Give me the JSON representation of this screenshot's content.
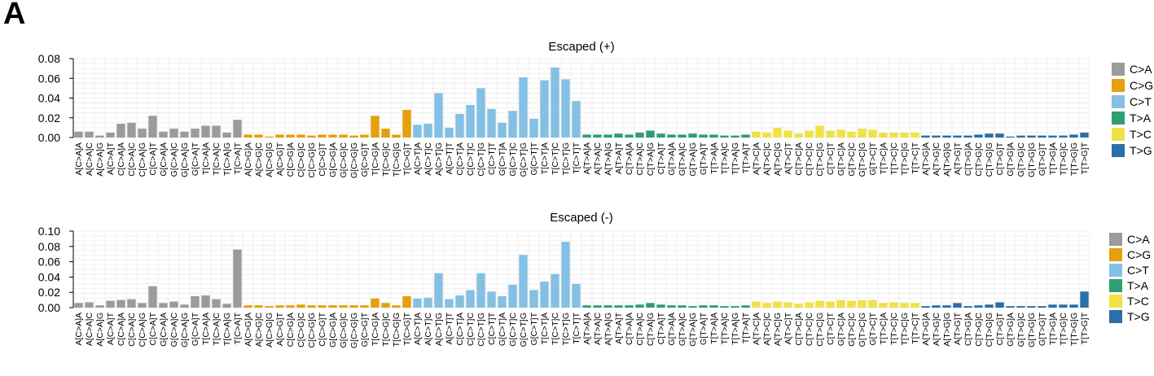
{
  "panel_label": "A",
  "colors": {
    "C>A": "#9b9b9b",
    "C>G": "#e4a00d",
    "C>T": "#84c0e3",
    "T>A": "#2f9e73",
    "T>C": "#f0e244",
    "T>G": "#2b6fa8"
  },
  "chart_data": [
    {
      "type": "bar",
      "title": "Escaped (+)",
      "ylim": [
        0,
        0.08
      ],
      "yticks": [
        "0.00",
        "0.02",
        "0.04",
        "0.06",
        "0.08"
      ],
      "grid": true,
      "legend_position": "right",
      "legend": [
        "C>A",
        "C>G",
        "C>T",
        "T>A",
        "T>C",
        "T>G"
      ],
      "categories": [
        "A[C>A]A",
        "A[C>A]C",
        "A[C>A]G",
        "A[C>A]T",
        "C[C>A]A",
        "C[C>A]C",
        "C[C>A]G",
        "C[C>A]T",
        "G[C>A]A",
        "G[C>A]C",
        "G[C>A]G",
        "G[C>A]T",
        "T[C>A]A",
        "T[C>A]C",
        "T[C>A]G",
        "T[C>A]T",
        "A[C>G]A",
        "A[C>G]C",
        "A[C>G]G",
        "A[C>G]T",
        "C[C>G]A",
        "C[C>G]C",
        "C[C>G]G",
        "C[C>G]T",
        "G[C>G]A",
        "G[C>G]C",
        "G[C>G]G",
        "G[C>G]T",
        "T[C>G]A",
        "T[C>G]C",
        "T[C>G]G",
        "T[C>G]T",
        "A[C>T]A",
        "A[C>T]C",
        "A[C>T]G",
        "A[C>T]T",
        "C[C>T]A",
        "C[C>T]C",
        "C[C>T]G",
        "C[C>T]T",
        "G[C>T]A",
        "G[C>T]C",
        "G[C>T]G",
        "G[C>T]T",
        "T[C>T]A",
        "T[C>T]C",
        "T[C>T]G",
        "T[C>T]T",
        "A[T>A]A",
        "A[T>A]C",
        "A[T>A]G",
        "A[T>A]T",
        "C[T>A]A",
        "C[T>A]C",
        "C[T>A]G",
        "C[T>A]T",
        "G[T>A]A",
        "G[T>A]C",
        "G[T>A]G",
        "G[T>A]T",
        "T[T>A]A",
        "T[T>A]C",
        "T[T>A]G",
        "T[T>A]T",
        "A[T>C]A",
        "A[T>C]C",
        "A[T>C]G",
        "A[T>C]T",
        "C[T>C]A",
        "C[T>C]C",
        "C[T>C]G",
        "C[T>C]T",
        "G[T>C]A",
        "G[T>C]C",
        "G[T>C]G",
        "G[T>C]T",
        "T[T>C]A",
        "T[T>C]C",
        "T[T>C]G",
        "T[T>C]T",
        "A[T>G]A",
        "A[T>G]C",
        "A[T>G]G",
        "A[T>G]T",
        "C[T>G]A",
        "C[T>G]C",
        "C[T>G]G",
        "C[T>G]T",
        "G[T>G]A",
        "G[T>G]C",
        "G[T>G]G",
        "G[T>G]T",
        "T[T>G]A",
        "T[T>G]C",
        "T[T>G]G",
        "T[T>G]T"
      ],
      "values": [
        0.006,
        0.006,
        0.002,
        0.005,
        0.014,
        0.015,
        0.009,
        0.022,
        0.006,
        0.009,
        0.006,
        0.009,
        0.012,
        0.012,
        0.005,
        0.018,
        0.003,
        0.003,
        0.001,
        0.003,
        0.003,
        0.003,
        0.002,
        0.003,
        0.003,
        0.003,
        0.002,
        0.003,
        0.022,
        0.009,
        0.003,
        0.028,
        0.013,
        0.014,
        0.045,
        0.01,
        0.024,
        0.033,
        0.05,
        0.029,
        0.015,
        0.027,
        0.061,
        0.019,
        0.058,
        0.071,
        0.059,
        0.037,
        0.003,
        0.003,
        0.003,
        0.004,
        0.003,
        0.005,
        0.007,
        0.004,
        0.003,
        0.003,
        0.004,
        0.003,
        0.003,
        0.002,
        0.002,
        0.003,
        0.006,
        0.005,
        0.01,
        0.007,
        0.004,
        0.007,
        0.012,
        0.007,
        0.008,
        0.006,
        0.009,
        0.008,
        0.005,
        0.005,
        0.005,
        0.005,
        0.002,
        0.002,
        0.002,
        0.002,
        0.002,
        0.003,
        0.004,
        0.004,
        0.001,
        0.002,
        0.002,
        0.002,
        0.002,
        0.002,
        0.003,
        0.005
      ]
    },
    {
      "type": "bar",
      "title": "Escaped (-)",
      "ylim": [
        0,
        0.1
      ],
      "yticks": [
        "0.00",
        "0.02",
        "0.04",
        "0.06",
        "0.08",
        "0.10"
      ],
      "grid": true,
      "legend_position": "right",
      "legend": [
        "C>A",
        "C>G",
        "C>T",
        "T>A",
        "T>C",
        "T>G"
      ],
      "categories": [
        "A[C>A]A",
        "A[C>A]C",
        "A[C>A]G",
        "A[C>A]T",
        "C[C>A]A",
        "C[C>A]C",
        "C[C>A]G",
        "C[C>A]T",
        "G[C>A]A",
        "G[C>A]C",
        "G[C>A]G",
        "G[C>A]T",
        "T[C>A]A",
        "T[C>A]C",
        "T[C>A]G",
        "T[C>A]T",
        "A[C>G]A",
        "A[C>G]C",
        "A[C>G]G",
        "A[C>G]T",
        "C[C>G]A",
        "C[C>G]C",
        "C[C>G]G",
        "C[C>G]T",
        "G[C>G]A",
        "G[C>G]C",
        "G[C>G]G",
        "G[C>G]T",
        "T[C>G]A",
        "T[C>G]C",
        "T[C>G]G",
        "T[C>G]T",
        "A[C>T]A",
        "A[C>T]C",
        "A[C>T]G",
        "A[C>T]T",
        "C[C>T]A",
        "C[C>T]C",
        "C[C>T]G",
        "C[C>T]T",
        "G[C>T]A",
        "G[C>T]C",
        "G[C>T]G",
        "G[C>T]T",
        "T[C>T]A",
        "T[C>T]C",
        "T[C>T]G",
        "T[C>T]T",
        "A[T>A]A",
        "A[T>A]C",
        "A[T>A]G",
        "A[T>A]T",
        "C[T>A]A",
        "C[T>A]C",
        "C[T>A]G",
        "C[T>A]T",
        "G[T>A]A",
        "G[T>A]C",
        "G[T>A]G",
        "G[T>A]T",
        "T[T>A]A",
        "T[T>A]C",
        "T[T>A]G",
        "T[T>A]T",
        "A[T>C]A",
        "A[T>C]C",
        "A[T>C]G",
        "A[T>C]T",
        "C[T>C]A",
        "C[T>C]C",
        "C[T>C]G",
        "C[T>C]T",
        "G[T>C]A",
        "G[T>C]C",
        "G[T>C]G",
        "G[T>C]T",
        "T[T>C]A",
        "T[T>C]C",
        "T[T>C]G",
        "T[T>C]T",
        "A[T>G]A",
        "A[T>G]C",
        "A[T>G]G",
        "A[T>G]T",
        "C[T>G]A",
        "C[T>G]C",
        "C[T>G]G",
        "C[T>G]T",
        "G[T>G]A",
        "G[T>G]C",
        "G[T>G]G",
        "G[T>G]T",
        "T[T>G]A",
        "T[T>G]C",
        "T[T>G]G",
        "T[T>G]T"
      ],
      "values": [
        0.006,
        0.007,
        0.003,
        0.009,
        0.01,
        0.011,
        0.006,
        0.028,
        0.006,
        0.008,
        0.004,
        0.015,
        0.016,
        0.011,
        0.005,
        0.076,
        0.003,
        0.003,
        0.002,
        0.003,
        0.003,
        0.004,
        0.003,
        0.003,
        0.003,
        0.003,
        0.003,
        0.003,
        0.012,
        0.006,
        0.003,
        0.015,
        0.012,
        0.013,
        0.045,
        0.011,
        0.016,
        0.023,
        0.045,
        0.021,
        0.015,
        0.03,
        0.069,
        0.023,
        0.034,
        0.044,
        0.086,
        0.031,
        0.003,
        0.003,
        0.003,
        0.003,
        0.003,
        0.004,
        0.006,
        0.004,
        0.003,
        0.003,
        0.002,
        0.003,
        0.003,
        0.002,
        0.002,
        0.003,
        0.008,
        0.006,
        0.008,
        0.007,
        0.005,
        0.007,
        0.009,
        0.008,
        0.01,
        0.009,
        0.01,
        0.01,
        0.006,
        0.007,
        0.006,
        0.006,
        0.002,
        0.003,
        0.003,
        0.006,
        0.002,
        0.003,
        0.004,
        0.007,
        0.002,
        0.002,
        0.002,
        0.002,
        0.004,
        0.004,
        0.004,
        0.021
      ]
    }
  ]
}
